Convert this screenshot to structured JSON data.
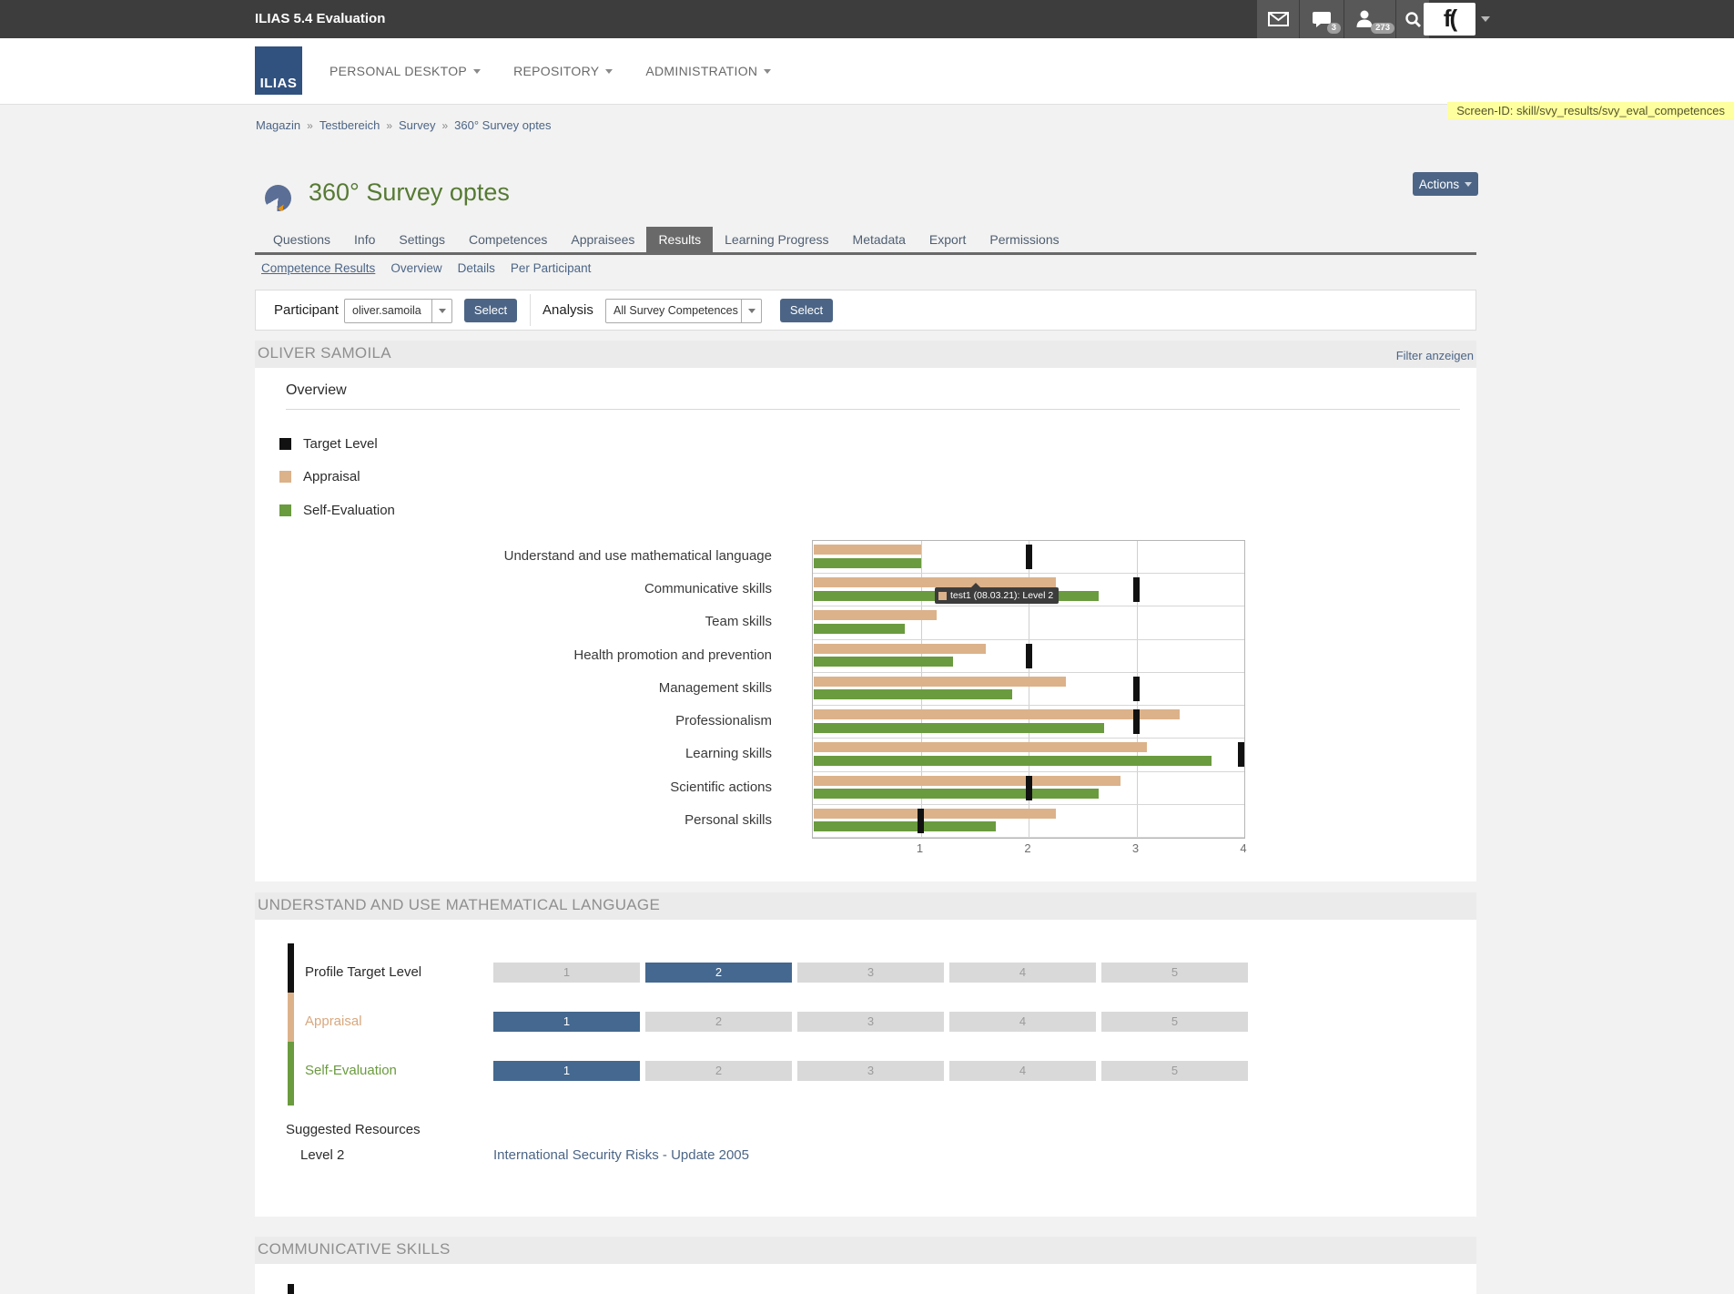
{
  "topbar": {
    "app_title": "ILIAS 5.4 Evaluation",
    "chat_badge": "3",
    "users_badge": "273",
    "logo_text": "f("
  },
  "header": {
    "logo_text": "ILIAS",
    "menus": [
      {
        "label": "PERSONAL DESKTOP"
      },
      {
        "label": "REPOSITORY"
      },
      {
        "label": "ADMINISTRATION"
      }
    ]
  },
  "screen_id": "Screen-ID: skill/svy_results/svy_eval_competences",
  "breadcrumb": {
    "separator": "»",
    "items": [
      "Magazin",
      "Testbereich",
      "Survey",
      "360° Survey optes"
    ]
  },
  "page": {
    "title": "360° Survey optes",
    "actions_button": "Actions"
  },
  "tabs": [
    {
      "label": "Questions",
      "active": false
    },
    {
      "label": "Info",
      "active": false
    },
    {
      "label": "Settings",
      "active": false
    },
    {
      "label": "Competences",
      "active": false
    },
    {
      "label": "Appraisees",
      "active": false
    },
    {
      "label": "Results",
      "active": true
    },
    {
      "label": "Learning Progress",
      "active": false
    },
    {
      "label": "Metadata",
      "active": false
    },
    {
      "label": "Export",
      "active": false
    },
    {
      "label": "Permissions",
      "active": false
    }
  ],
  "subtabs": [
    {
      "label": "Competence Results",
      "active": true
    },
    {
      "label": "Overview",
      "active": false
    },
    {
      "label": "Details",
      "active": false
    },
    {
      "label": "Per Participant",
      "active": false
    }
  ],
  "toolbar": {
    "participant_label": "Participant",
    "participant_value": "oliver.samoila",
    "participant_button": "Select",
    "analysis_label": "Analysis",
    "analysis_value": "All Survey Competences",
    "analysis_button": "Select"
  },
  "results_header": {
    "title": "OLIVER SAMOILA",
    "filter_link": "Filter anzeigen"
  },
  "overview_panel": {
    "title": "Overview"
  },
  "legend": [
    {
      "label": "Target Level",
      "color": "#111111"
    },
    {
      "label": "Appraisal",
      "color": "#dcb28a"
    },
    {
      "label": "Self-Evaluation",
      "color": "#6a9b3e"
    }
  ],
  "chart_data": {
    "type": "bar",
    "orientation": "horizontal",
    "title": "Overview",
    "categories": [
      "Understand and use mathematical language",
      "Communicative skills",
      "Team skills",
      "Health promotion and prevention",
      "Management skills",
      "Professionalism",
      "Learning skills",
      "Scientific actions",
      "Personal skills"
    ],
    "series": [
      {
        "name": "Target Level",
        "style": "marker",
        "color": "#111111",
        "values": [
          2,
          3,
          null,
          2,
          3,
          3,
          4,
          2,
          1
        ]
      },
      {
        "name": "Appraisal",
        "style": "bar",
        "color": "#dcb28a",
        "values": [
          1.0,
          2.25,
          1.15,
          1.6,
          2.35,
          3.4,
          3.1,
          2.85,
          2.25
        ]
      },
      {
        "name": "Self-Evaluation",
        "style": "bar",
        "color": "#6a9b3e",
        "values": [
          1.0,
          2.65,
          0.85,
          1.3,
          1.85,
          2.7,
          3.7,
          2.65,
          1.7
        ]
      }
    ],
    "xlim": [
      0,
      4
    ],
    "xticks": [
      "1",
      "2",
      "3",
      "4"
    ],
    "grid": true,
    "legend_position": "top-left",
    "tooltip": {
      "category_index": 1,
      "text": "test1 (08.03.21): Level 2",
      "swatch_color": "#dcb28a"
    }
  },
  "competence_panel": {
    "heading": "UNDERSTAND AND USE MATHEMATICAL LANGUAGE",
    "levels": [
      "1",
      "2",
      "3",
      "4",
      "5"
    ],
    "active_color": "#44688f",
    "rows": [
      {
        "label": "Profile Target Level",
        "marker_color": "#111111",
        "label_color": "#2b2b2b",
        "active_level": 2
      },
      {
        "label": "Appraisal",
        "marker_color": "#dcb28a",
        "label_color": "#d8a87e",
        "active_level": 1
      },
      {
        "label": "Self-Evaluation",
        "marker_color": "#6a9b3e",
        "label_color": "#6a9b3e",
        "active_level": 1
      }
    ],
    "suggested_resources_label": "Suggested Resources",
    "resource_level": "Level 2",
    "resource_link": "International Security Risks - Update 2005"
  },
  "next_section": {
    "heading": "COMMUNICATIVE SKILLS"
  }
}
